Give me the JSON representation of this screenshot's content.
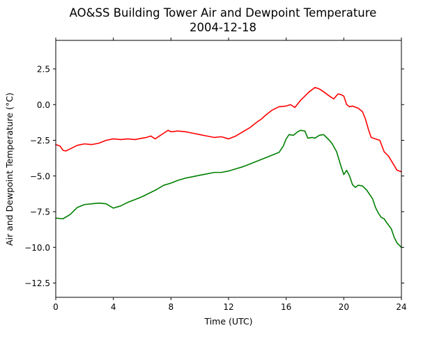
{
  "chart_data": {
    "type": "line",
    "title": "AO&SS Building Tower Air and Dewpoint Temperature",
    "subtitle": "2004-12-18",
    "xlabel": "Time (UTC)",
    "ylabel": "Air and Dewpoint Temperature (°C)",
    "xlim": [
      0,
      24
    ],
    "ylim": [
      -13.5,
      4.5
    ],
    "x_ticks": [
      0,
      4,
      8,
      12,
      16,
      20,
      24
    ],
    "x_tick_labels": [
      "0",
      "4",
      "8",
      "12",
      "16",
      "20",
      "24"
    ],
    "y_ticks": [
      2.5,
      0.0,
      -2.5,
      -5.0,
      -7.5,
      -10.0,
      -12.5
    ],
    "y_tick_labels": [
      "2.5",
      "0.0",
      "−2.5",
      "−5.0",
      "−7.5",
      "−10.0",
      "−12.5"
    ],
    "grid": false,
    "legend": "none",
    "series": [
      {
        "color": "#ff0000",
        "x": [
          0,
          0.3,
          0.5,
          0.7,
          1.0,
          1.5,
          2.0,
          2.5,
          3.0,
          3.5,
          4.0,
          4.5,
          5.0,
          5.5,
          6.0,
          6.3,
          6.6,
          6.9,
          7.2,
          7.5,
          7.8,
          8.0,
          8.5,
          9.0,
          9.5,
          10.0,
          10.5,
          11.0,
          11.5,
          12.0,
          12.5,
          13.0,
          13.5,
          14.0,
          14.3,
          14.5,
          15.0,
          15.5,
          16.0,
          16.3,
          16.6,
          17.0,
          17.3,
          17.6,
          18.0,
          18.3,
          18.6,
          19.0,
          19.3,
          19.6,
          19.8,
          20.0,
          20.2,
          20.4,
          20.6,
          21.0,
          21.3,
          21.5,
          21.7,
          21.9,
          22.2,
          22.5,
          22.8,
          23.1,
          23.4,
          23.7,
          24.0
        ],
        "y": [
          -2.8,
          -2.9,
          -3.2,
          -3.25,
          -3.1,
          -2.85,
          -2.75,
          -2.8,
          -2.7,
          -2.5,
          -2.4,
          -2.45,
          -2.4,
          -2.45,
          -2.35,
          -2.3,
          -2.2,
          -2.4,
          -2.2,
          -2.0,
          -1.8,
          -1.9,
          -1.85,
          -1.9,
          -2.0,
          -2.1,
          -2.2,
          -2.3,
          -2.25,
          -2.4,
          -2.2,
          -1.9,
          -1.6,
          -1.2,
          -1.0,
          -0.8,
          -0.4,
          -0.15,
          -0.1,
          0.0,
          -0.2,
          0.3,
          0.6,
          0.9,
          1.2,
          1.1,
          0.9,
          0.6,
          0.4,
          0.75,
          0.7,
          0.6,
          0.0,
          -0.15,
          -0.1,
          -0.25,
          -0.5,
          -1.0,
          -1.7,
          -2.3,
          -2.4,
          -2.5,
          -3.3,
          -3.6,
          -4.1,
          -4.6,
          -4.7
        ]
      },
      {
        "color": "#008000",
        "x": [
          0,
          0.5,
          1.0,
          1.5,
          2.0,
          2.5,
          3.0,
          3.5,
          4.0,
          4.5,
          5.0,
          5.5,
          6.0,
          6.5,
          7.0,
          7.5,
          8.0,
          8.5,
          9.0,
          9.5,
          10.0,
          10.5,
          11.0,
          11.5,
          12.0,
          12.5,
          13.0,
          13.5,
          14.0,
          14.5,
          15.0,
          15.5,
          15.8,
          16.0,
          16.2,
          16.5,
          16.8,
          17.0,
          17.3,
          17.5,
          17.8,
          18.0,
          18.3,
          18.6,
          19.0,
          19.2,
          19.5,
          19.8,
          20.0,
          20.2,
          20.4,
          20.6,
          20.8,
          21.0,
          21.3,
          21.6,
          21.8,
          22.0,
          22.2,
          22.4,
          22.6,
          22.8,
          23.0,
          23.3,
          23.5,
          23.7,
          24.0
        ],
        "y": [
          -7.95,
          -8.0,
          -7.7,
          -7.2,
          -7.0,
          -6.95,
          -6.9,
          -6.95,
          -7.25,
          -7.1,
          -6.85,
          -6.65,
          -6.45,
          -6.2,
          -5.95,
          -5.65,
          -5.5,
          -5.3,
          -5.15,
          -5.05,
          -4.95,
          -4.85,
          -4.75,
          -4.75,
          -4.65,
          -4.5,
          -4.35,
          -4.15,
          -3.95,
          -3.75,
          -3.55,
          -3.35,
          -2.9,
          -2.4,
          -2.1,
          -2.15,
          -1.9,
          -1.8,
          -1.85,
          -2.35,
          -2.3,
          -2.35,
          -2.15,
          -2.1,
          -2.5,
          -2.75,
          -3.3,
          -4.3,
          -4.9,
          -4.6,
          -5.0,
          -5.6,
          -5.8,
          -5.65,
          -5.7,
          -6.0,
          -6.3,
          -6.6,
          -7.2,
          -7.6,
          -7.9,
          -8.0,
          -8.3,
          -8.7,
          -9.3,
          -9.7,
          -10.0
        ]
      }
    ]
  }
}
